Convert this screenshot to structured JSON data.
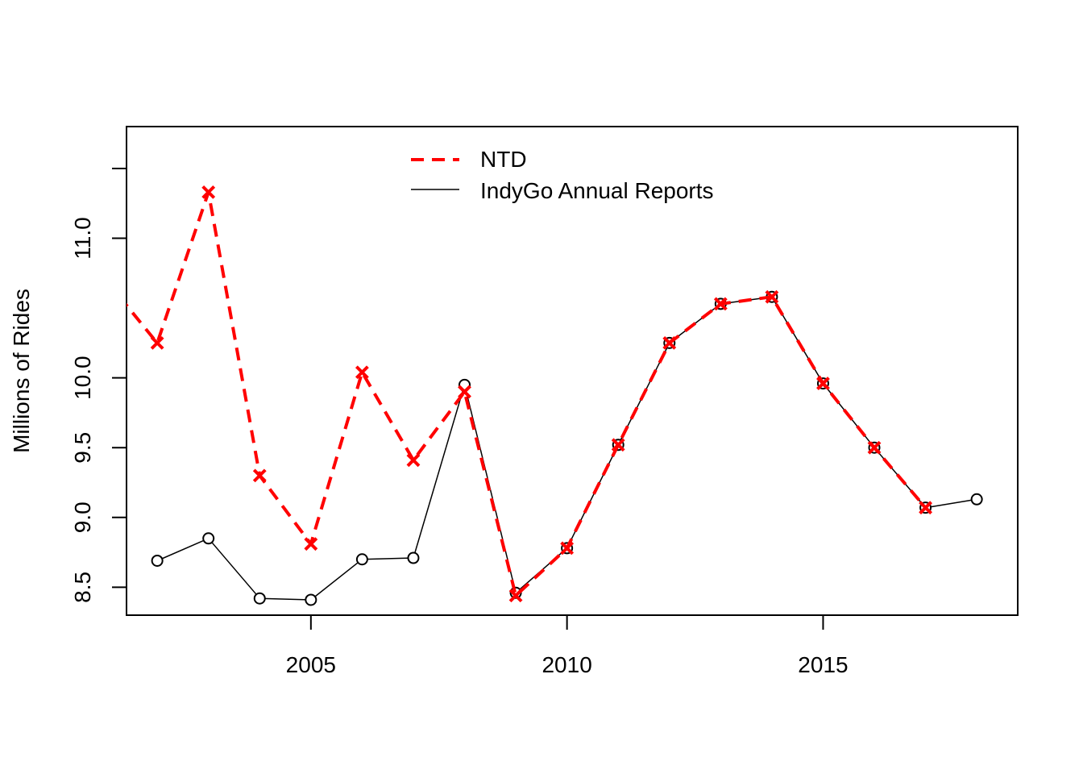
{
  "chart_data": {
    "type": "line",
    "xlabel": "",
    "ylabel": "Millions of Rides",
    "xlim": [
      2001.4,
      2018.8
    ],
    "ylim": [
      8.3,
      11.8
    ],
    "x_ticks": [
      2005,
      2010,
      2015
    ],
    "y_ticks": [
      8.5,
      9.0,
      9.5,
      10.0,
      11.0
    ],
    "y_ticks_unlabeled": [
      11.5
    ],
    "y_tick_labels": [
      "8.5",
      "9.0",
      "9.5",
      "10.0",
      "11.0"
    ],
    "legend_position": "top-center",
    "series": [
      {
        "name": "NTD",
        "color": "#ff0000",
        "line_style": "dashed",
        "marker": "cross",
        "points": [
          {
            "x": 2001,
            "y": 10.7
          },
          {
            "x": 2002,
            "y": 10.25
          },
          {
            "x": 2003,
            "y": 11.33
          },
          {
            "x": 2004,
            "y": 9.3
          },
          {
            "x": 2005,
            "y": 8.81
          },
          {
            "x": 2006,
            "y": 10.04
          },
          {
            "x": 2007,
            "y": 9.41
          },
          {
            "x": 2008,
            "y": 9.9
          },
          {
            "x": 2009,
            "y": 8.44
          },
          {
            "x": 2010,
            "y": 8.78
          },
          {
            "x": 2011,
            "y": 9.52
          },
          {
            "x": 2012,
            "y": 10.25
          },
          {
            "x": 2013,
            "y": 10.53
          },
          {
            "x": 2014,
            "y": 10.58
          },
          {
            "x": 2015,
            "y": 9.96
          },
          {
            "x": 2016,
            "y": 9.5
          },
          {
            "x": 2017,
            "y": 9.07
          }
        ]
      },
      {
        "name": "IndyGo Annual Reports",
        "color": "#000000",
        "line_style": "solid",
        "marker": "circle",
        "points": [
          {
            "x": 2002,
            "y": 8.69
          },
          {
            "x": 2003,
            "y": 8.85
          },
          {
            "x": 2004,
            "y": 8.42
          },
          {
            "x": 2005,
            "y": 8.41
          },
          {
            "x": 2006,
            "y": 8.7
          },
          {
            "x": 2007,
            "y": 8.71
          },
          {
            "x": 2008,
            "y": 9.95
          },
          {
            "x": 2009,
            "y": 8.46
          },
          {
            "x": 2010,
            "y": 8.78
          },
          {
            "x": 2011,
            "y": 9.52
          },
          {
            "x": 2012,
            "y": 10.25
          },
          {
            "x": 2013,
            "y": 10.53
          },
          {
            "x": 2014,
            "y": 10.58
          },
          {
            "x": 2015,
            "y": 9.96
          },
          {
            "x": 2016,
            "y": 9.5
          },
          {
            "x": 2017,
            "y": 9.07
          },
          {
            "x": 2018,
            "y": 9.13
          }
        ]
      }
    ]
  }
}
